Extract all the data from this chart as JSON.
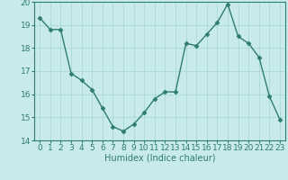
{
  "x": [
    0,
    1,
    2,
    3,
    4,
    5,
    6,
    7,
    8,
    9,
    10,
    11,
    12,
    13,
    14,
    15,
    16,
    17,
    18,
    19,
    20,
    21,
    22,
    23
  ],
  "y": [
    19.3,
    18.8,
    18.8,
    16.9,
    16.6,
    16.2,
    15.4,
    14.6,
    14.4,
    14.7,
    15.2,
    15.8,
    16.1,
    16.1,
    18.2,
    18.1,
    18.6,
    19.1,
    19.9,
    18.5,
    18.2,
    17.6,
    15.9,
    14.9
  ],
  "line_color": "#2e7d6e",
  "marker": "D",
  "marker_size": 2.5,
  "bg_color": "#c8eaea",
  "grid_color": "#a8d8d8",
  "xlabel": "Humidex (Indice chaleur)",
  "xlim": [
    -0.5,
    23.5
  ],
  "ylim": [
    14,
    20
  ],
  "yticks": [
    14,
    15,
    16,
    17,
    18,
    19,
    20
  ],
  "xticks": [
    0,
    1,
    2,
    3,
    4,
    5,
    6,
    7,
    8,
    9,
    10,
    11,
    12,
    13,
    14,
    15,
    16,
    17,
    18,
    19,
    20,
    21,
    22,
    23
  ],
  "xlabel_fontsize": 7,
  "tick_fontsize": 6.5,
  "line_width": 1.0
}
